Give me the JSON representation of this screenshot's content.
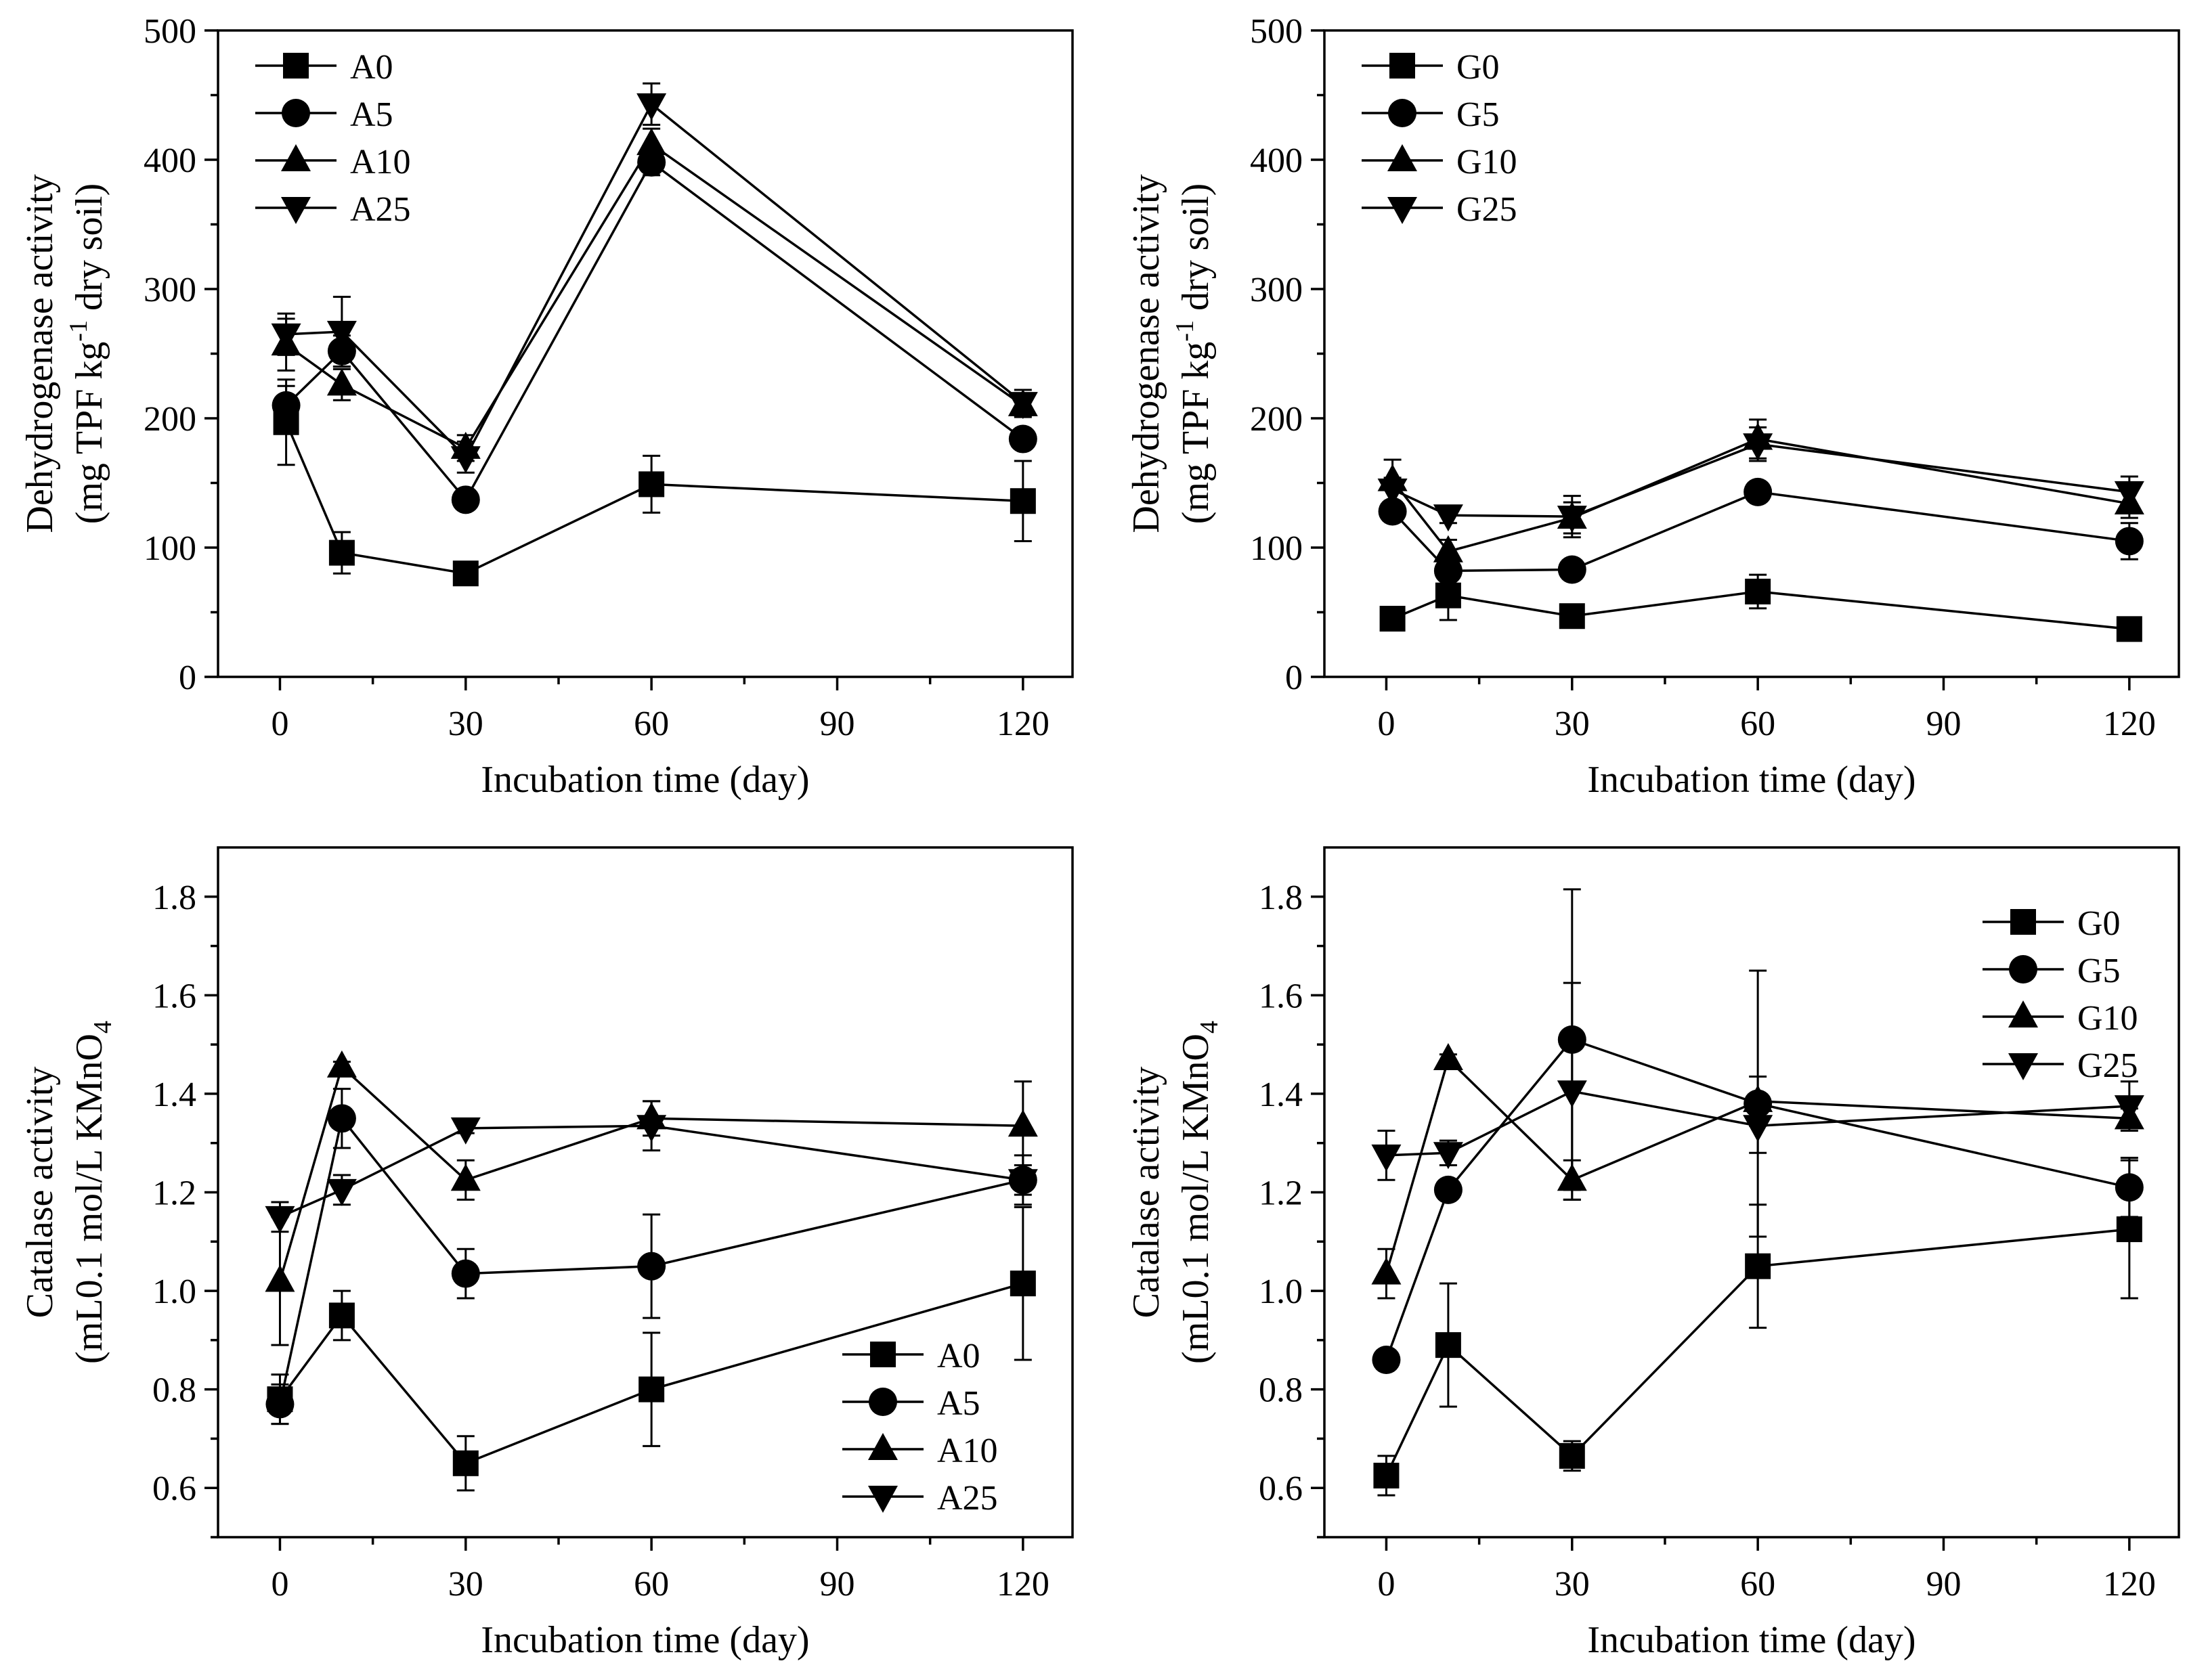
{
  "chart_data": [
    {
      "type": "line",
      "ylabel_line1": "Dehydrogenase activity",
      "ylabel_line2": {
        "pre": "(mg TPF kg",
        "sup": "-1",
        "post": " dry soil)"
      },
      "xlabel": "Incubation time (day)",
      "xlim": [
        -10,
        128
      ],
      "ylim": [
        0,
        500
      ],
      "xticks": [
        0,
        30,
        60,
        90,
        120
      ],
      "yticks": [
        0,
        100,
        200,
        300,
        400,
        500
      ],
      "ytick_labels": [
        "0",
        "100",
        "200",
        "300",
        "400",
        "500"
      ],
      "legend_position": "top-left",
      "x": [
        1,
        10,
        30,
        60,
        120
      ],
      "series": [
        {
          "name": "A0",
          "marker": "square",
          "values": [
            197,
            96,
            80,
            149,
            136
          ],
          "errors": [
            33,
            16,
            4,
            22,
            31
          ]
        },
        {
          "name": "A5",
          "marker": "circle",
          "values": [
            210,
            252,
            137,
            398,
            184
          ],
          "errors": [
            15,
            12,
            5,
            10,
            7
          ]
        },
        {
          "name": "A10",
          "marker": "triangle-up",
          "values": [
            257,
            226,
            177,
            412,
            210
          ],
          "errors": [
            20,
            12,
            10,
            12,
            9
          ]
        },
        {
          "name": "A25",
          "marker": "triangle-down",
          "values": [
            265,
            267,
            170,
            443,
            212
          ],
          "errors": [
            16,
            27,
            12,
            16,
            10
          ]
        }
      ]
    },
    {
      "type": "line",
      "ylabel_line1": "Dehydrogenase activity",
      "ylabel_line2": {
        "pre": "(mg TPF kg",
        "sup": "-1",
        "post": " dry soil)"
      },
      "xlabel": "Incubation time (day)",
      "xlim": [
        -10,
        128
      ],
      "ylim": [
        0,
        500
      ],
      "xticks": [
        0,
        30,
        60,
        90,
        120
      ],
      "yticks": [
        0,
        100,
        200,
        300,
        400,
        500
      ],
      "ytick_labels": [
        "0",
        "100",
        "200",
        "300",
        "400",
        "500"
      ],
      "legend_position": "top-left",
      "x": [
        1,
        10,
        30,
        60,
        120
      ],
      "series": [
        {
          "name": "G0",
          "marker": "square",
          "values": [
            45,
            63,
            47,
            66,
            37
          ],
          "errors": [
            3,
            19,
            3,
            13,
            4
          ]
        },
        {
          "name": "G5",
          "marker": "circle",
          "values": [
            128,
            82,
            83,
            143,
            105
          ],
          "errors": [
            7,
            6,
            4,
            5,
            14
          ]
        },
        {
          "name": "G10",
          "marker": "triangle-up",
          "values": [
            152,
            97,
            123,
            184,
            134
          ],
          "errors": [
            16,
            9,
            12,
            15,
            11
          ]
        },
        {
          "name": "G25",
          "marker": "triangle-down",
          "values": [
            145,
            125,
            124,
            180,
            143
          ],
          "errors": [
            9,
            6,
            16,
            13,
            12
          ]
        }
      ]
    },
    {
      "type": "line",
      "ylabel_line1": "Catalase activity",
      "ylabel_line2": {
        "pre": "(mL0.1 mol/L KMnO",
        "sub": "4"
      },
      "xlabel": "Incubation time (day)",
      "xlim": [
        -10,
        128
      ],
      "ylim": [
        0.5,
        1.9
      ],
      "xticks": [
        0,
        30,
        60,
        90,
        120
      ],
      "yticks": [
        0.6,
        0.8,
        1.0,
        1.2,
        1.4,
        1.6,
        1.8
      ],
      "ytick_labels": [
        "0.6",
        "0.8",
        "1.0",
        "1.2",
        "1.4",
        "1.6",
        "1.8"
      ],
      "legend_position": "bottom-right",
      "x": [
        0,
        10,
        30,
        60,
        120
      ],
      "series": [
        {
          "name": "A0",
          "marker": "square",
          "values": [
            0.78,
            0.95,
            0.65,
            0.8,
            1.015
          ],
          "errors": [
            0.05,
            0.05,
            0.055,
            0.115,
            0.155
          ]
        },
        {
          "name": "A5",
          "marker": "circle",
          "values": [
            0.77,
            1.35,
            1.035,
            1.05,
            1.225
          ],
          "errors": [
            0.04,
            0.06,
            0.05,
            0.105,
            0.05
          ]
        },
        {
          "name": "A10",
          "marker": "triangle-up",
          "values": [
            1.02,
            1.455,
            1.225,
            1.35,
            1.335
          ],
          "errors": [
            0.13,
            0.01,
            0.04,
            0.035,
            0.09
          ]
        },
        {
          "name": "A25",
          "marker": "triangle-down",
          "values": [
            1.15,
            1.205,
            1.33,
            1.335,
            1.225
          ],
          "errors": [
            0.03,
            0.03,
            0.01,
            0.05,
            0.03
          ]
        }
      ]
    },
    {
      "type": "line",
      "ylabel_line1": "Catalase activity",
      "ylabel_line2": {
        "pre": "(mL0.1 mol/L KMnO",
        "sub": "4"
      },
      "xlabel": "Incubation time (day)",
      "xlim": [
        -10,
        128
      ],
      "ylim": [
        0.5,
        1.9
      ],
      "xticks": [
        0,
        30,
        60,
        90,
        120
      ],
      "yticks": [
        0.6,
        0.8,
        1.0,
        1.2,
        1.4,
        1.6,
        1.8
      ],
      "ytick_labels": [
        "0.6",
        "0.8",
        "1.0",
        "1.2",
        "1.4",
        "1.6",
        "1.8"
      ],
      "legend_position": "top-right",
      "x": [
        0,
        10,
        30,
        60,
        120
      ],
      "series": [
        {
          "name": "G0",
          "marker": "square",
          "values": [
            0.625,
            0.89,
            0.665,
            1.05,
            1.125
          ],
          "errors": [
            0.04,
            0.125,
            0.03,
            0.125,
            0.14
          ]
        },
        {
          "name": "G5",
          "marker": "circle",
          "values": [
            0.86,
            1.205,
            1.51,
            1.38,
            1.21
          ],
          "errors": [
            0.02,
            0.02,
            0.305,
            0.27,
            0.06
          ]
        },
        {
          "name": "G10",
          "marker": "triangle-up",
          "values": [
            1.035,
            1.47,
            1.225,
            1.385,
            1.35
          ],
          "errors": [
            0.05,
            0.01,
            0.04,
            0.05,
            0.02
          ]
        },
        {
          "name": "G25",
          "marker": "triangle-down",
          "values": [
            1.275,
            1.28,
            1.405,
            1.335,
            1.375
          ],
          "errors": [
            0.05,
            0.025,
            0.22,
            0.055,
            0.05
          ]
        }
      ]
    }
  ]
}
